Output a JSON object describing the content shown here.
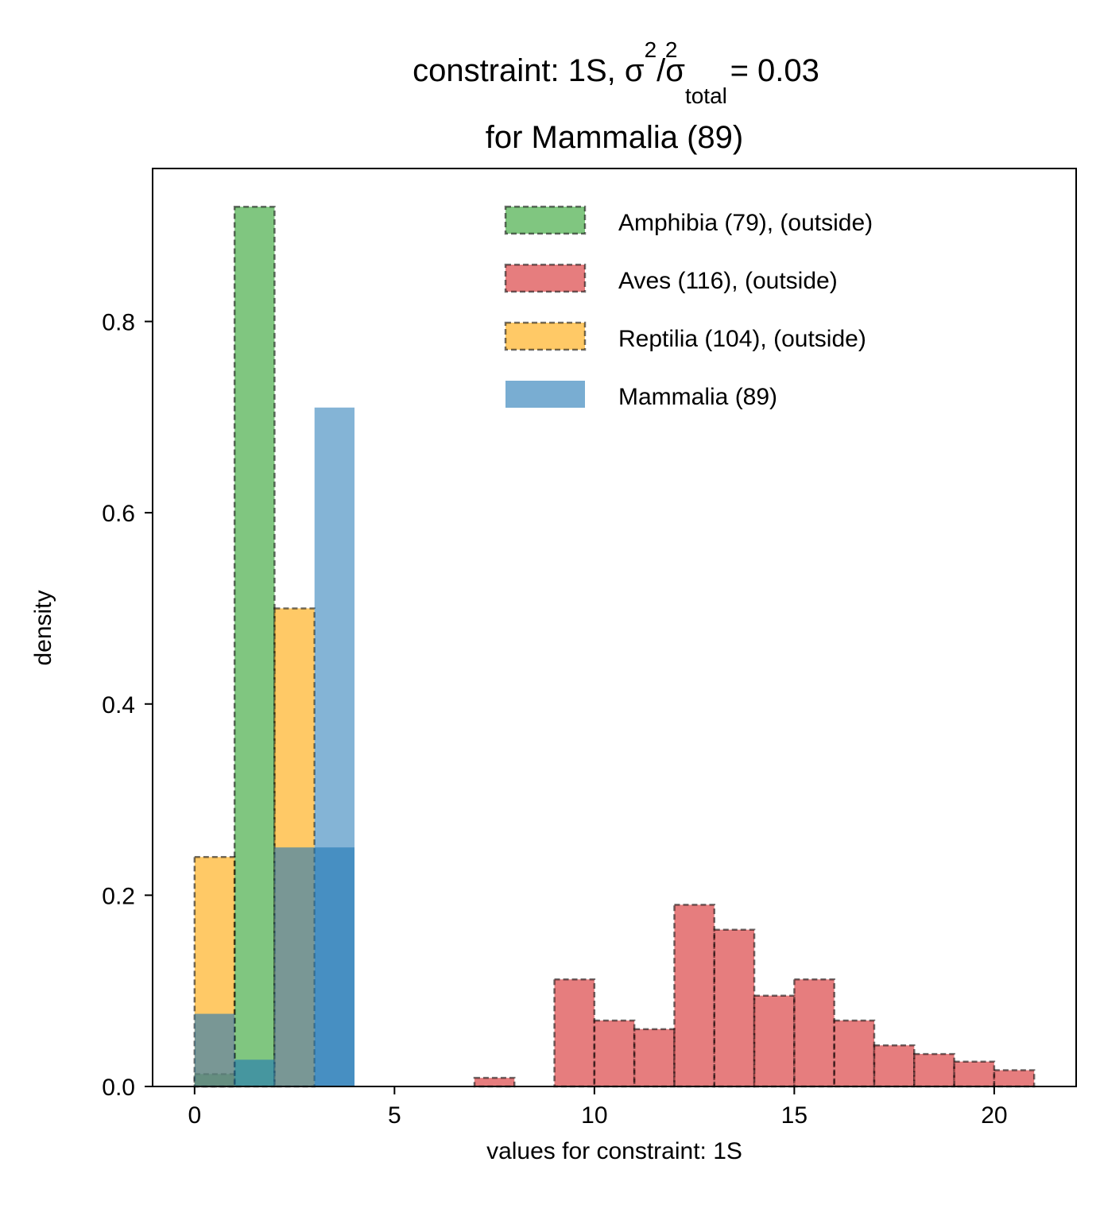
{
  "chart_data": {
    "type": "bar",
    "title": {
      "prefix": "constraint: 1S, σ",
      "sup1": "2",
      "slash": "/σ",
      "sub": "total",
      "sup2": "2",
      "suffix": " =  0.03",
      "line2": "for Mammalia (89)"
    },
    "xlabel": "values for constraint: 1S",
    "ylabel": "density",
    "xlim": [
      -1.05,
      22.05
    ],
    "ylim": [
      0,
      0.96
    ],
    "xticks": [
      0,
      5,
      10,
      15,
      20
    ],
    "yticks": [
      0.0,
      0.2,
      0.4,
      0.6,
      0.8
    ],
    "xtick_labels": [
      "0",
      "5",
      "10",
      "15",
      "20"
    ],
    "ytick_labels": [
      "0.0",
      "0.2",
      "0.4",
      "0.6",
      "0.8"
    ],
    "grid": false,
    "legend_position": "top-right",
    "series": [
      {
        "name": "Amphibia (79), (outside)",
        "color": "#2ca02c",
        "bins": [
          [
            0,
            1,
            0.013
          ],
          [
            1,
            2,
            0.92
          ],
          [
            2,
            3,
            0.0
          ],
          [
            3,
            4,
            0.0
          ]
        ]
      },
      {
        "name": "Aves (116), (outside)",
        "color": "#d62728",
        "bins": [
          [
            0,
            1,
            0.0
          ],
          [
            1,
            2,
            0.0
          ],
          [
            2,
            3,
            0.0
          ],
          [
            3,
            4,
            0.0
          ],
          [
            4,
            5,
            0.0
          ],
          [
            5,
            6,
            0.0
          ],
          [
            6,
            7,
            0.0
          ],
          [
            7,
            8,
            0.009
          ],
          [
            8,
            9,
            0.0
          ],
          [
            9,
            10,
            0.112
          ],
          [
            10,
            11,
            0.069
          ],
          [
            11,
            12,
            0.06
          ],
          [
            12,
            13,
            0.19
          ],
          [
            13,
            14,
            0.164
          ],
          [
            14,
            15,
            0.095
          ],
          [
            15,
            16,
            0.112
          ],
          [
            16,
            17,
            0.069
          ],
          [
            17,
            18,
            0.043
          ],
          [
            18,
            19,
            0.034
          ],
          [
            19,
            20,
            0.026
          ],
          [
            20,
            21,
            0.017
          ]
        ]
      },
      {
        "name": "Reptilia (104), (outside)",
        "color": "#ffa500",
        "bins": [
          [
            0,
            1,
            0.24
          ],
          [
            1,
            2,
            0.0
          ],
          [
            2,
            3,
            0.5
          ],
          [
            3,
            4,
            0.0
          ]
        ]
      },
      {
        "name": "Mammalia (89)",
        "color": "#1f77b4",
        "bins": [
          [
            0,
            1,
            0.076
          ],
          [
            1,
            2,
            0.028
          ],
          [
            2,
            3,
            0.25
          ],
          [
            3,
            4,
            0.25
          ]
        ]
      }
    ],
    "overlay": {
      "name": "Mammalia (89)",
      "color": "#1f77b4",
      "bins": [
        [
          3,
          4,
          0.71
        ]
      ]
    }
  }
}
